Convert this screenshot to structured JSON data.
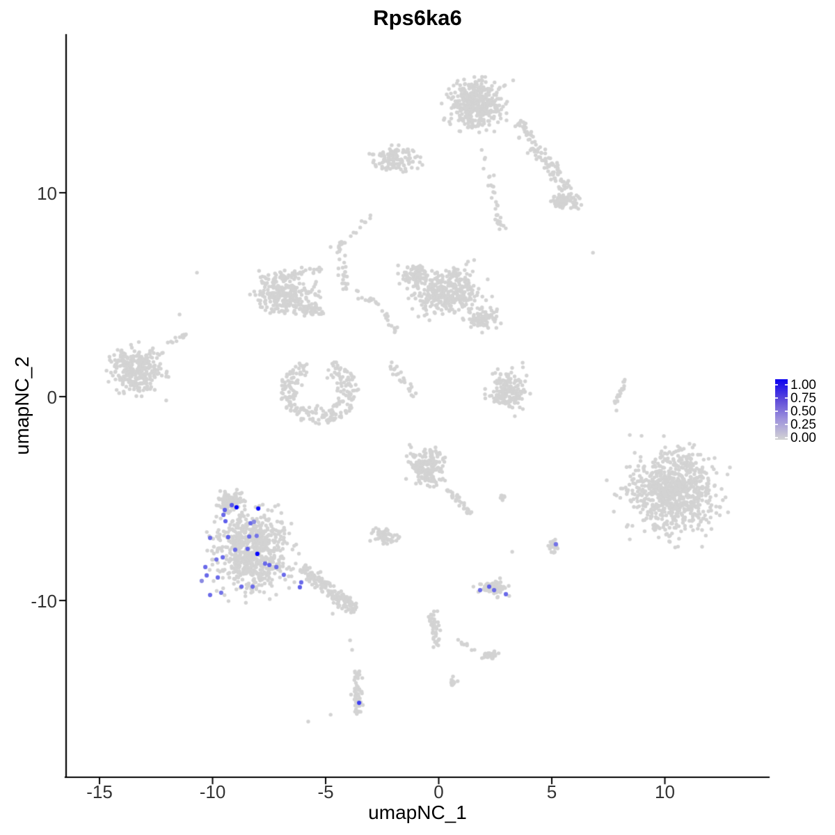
{
  "page": {
    "background": "#FFFFFF"
  },
  "chart_data": {
    "type": "scatter",
    "title": "Rps6ka6",
    "xlabel": "umapNC_1",
    "ylabel": "umapNC_2",
    "xlim": [
      -16.5,
      14.6
    ],
    "ylim": [
      -18.7,
      17.8
    ],
    "grid": false,
    "legend_position": "right",
    "point_color": "#D3D3D3",
    "axis_color": "#000000",
    "x_ticks": [
      {
        "label": "-15",
        "value": -15
      },
      {
        "label": "-10",
        "value": -10
      },
      {
        "label": "-5",
        "value": -5
      },
      {
        "label": "0",
        "value": 0
      },
      {
        "label": "5",
        "value": 5
      },
      {
        "label": "10",
        "value": 10
      }
    ],
    "y_ticks": [
      {
        "label": "10",
        "value": 10
      },
      {
        "label": "0",
        "value": 0
      },
      {
        "label": "-10",
        "value": -10
      }
    ],
    "legend": {
      "low_color": "#D3D3D3",
      "high_color": "#0000FF",
      "ticks": [
        {
          "label": "1.00",
          "value": 1.0
        },
        {
          "label": "0.75",
          "value": 0.75
        },
        {
          "label": "0.50",
          "value": 0.5
        },
        {
          "label": "0.25",
          "value": 0.25
        },
        {
          "label": "0.00",
          "value": 0.0
        }
      ]
    },
    "clusters": [
      {
        "name": "top-main",
        "type": "gauss",
        "cx": 1.68,
        "cy": 14.33,
        "sx": 1.69,
        "sy": 1.64,
        "rot": 0,
        "n": 430
      },
      {
        "name": "top-arm",
        "type": "strand",
        "x1": 3.49,
        "y1": 13.52,
        "x2": 6.2,
        "y2": 9.21,
        "w": 0.5,
        "n": 135
      },
      {
        "name": "top-arm-endblob",
        "type": "gauss",
        "cx": 5.37,
        "cy": 9.56,
        "sx": 0.55,
        "sy": 0.5,
        "rot": 0,
        "n": 55
      },
      {
        "name": "top-droop",
        "type": "strand",
        "x1": 1.98,
        "y1": 12.12,
        "x2": 2.85,
        "y2": 7.92,
        "w": 0.35,
        "n": 30
      },
      {
        "name": "top-small",
        "type": "gauss",
        "cx": -1.86,
        "cy": 11.6,
        "sx": 1.54,
        "sy": 0.89,
        "rot": -5,
        "n": 115
      },
      {
        "name": "upper-connector",
        "type": "strand",
        "x1": -3.0,
        "y1": 8.91,
        "x2": -4.29,
        "y2": 7.51,
        "w": 0.2,
        "n": 13
      },
      {
        "name": "mid-strand",
        "type": "strand",
        "x1": -4.42,
        "y1": 7.61,
        "x2": -4.08,
        "y2": 5.29,
        "w": 0.22,
        "n": 30
      },
      {
        "name": "mid-trail",
        "type": "strand",
        "x1": -3.86,
        "y1": 5.12,
        "x2": -2.51,
        "y2": 4.44,
        "w": 0.25,
        "n": 14
      },
      {
        "name": "mid-left",
        "type": "gauss",
        "cx": -6.78,
        "cy": 4.95,
        "sx": 1.7,
        "sy": 1.37,
        "rot": -12,
        "n": 240
      },
      {
        "name": "mid-left-bump",
        "type": "gauss",
        "cx": -5.55,
        "cy": 4.27,
        "sx": 0.7,
        "sy": 0.5,
        "rot": 0,
        "n": 50
      },
      {
        "name": "mid-left-top-arm",
        "type": "strand",
        "x1": -7.89,
        "y1": 5.8,
        "x2": -5.22,
        "y2": 6.21,
        "w": 0.3,
        "n": 45
      },
      {
        "name": "mid-right",
        "type": "gauss",
        "cx": 0.45,
        "cy": 5.12,
        "sx": 2.3,
        "sy": 1.6,
        "rot": 8,
        "n": 330
      },
      {
        "name": "mid-right-left-lobe",
        "type": "gauss",
        "cx": -1.09,
        "cy": 5.97,
        "sx": 0.85,
        "sy": 0.85,
        "rot": 0,
        "n": 80
      },
      {
        "name": "mid-right-right-lobe",
        "type": "gauss",
        "cx": 1.92,
        "cy": 3.82,
        "sx": 1.05,
        "sy": 0.75,
        "rot": 15,
        "n": 85
      },
      {
        "name": "mid-right-west-scatter",
        "type": "strand",
        "x1": -2.42,
        "y1": 4.27,
        "x2": -1.92,
        "y2": 3.14,
        "w": 0.35,
        "n": 13
      },
      {
        "name": "mid-right-down-trail",
        "type": "strand",
        "x1": -2.2,
        "y1": 1.6,
        "x2": -1.03,
        "y2": 0.07,
        "w": 0.2,
        "n": 24
      },
      {
        "name": "far-left",
        "type": "gauss",
        "cx": -13.4,
        "cy": 1.3,
        "sx": 1.62,
        "sy": 1.6,
        "rot": 0,
        "n": 300
      },
      {
        "name": "far-left-tail",
        "type": "strand",
        "x1": -11.89,
        "y1": 2.59,
        "x2": -11.15,
        "y2": 3.07,
        "w": 0.18,
        "n": 12
      },
      {
        "name": "bowl",
        "type": "ring",
        "cx": -5.31,
        "cy": 0.27,
        "rx": 1.72,
        "ry": 1.6,
        "inner": 0.45,
        "a0": 110,
        "a1": 430,
        "n": 235
      },
      {
        "name": "center-small",
        "type": "gauss",
        "cx": 3.06,
        "cy": 0.27,
        "sx": 1.1,
        "sy": 1.5,
        "rot": 0,
        "n": 165
      },
      {
        "name": "right-strip",
        "type": "strand",
        "x1": 8.29,
        "y1": 0.92,
        "x2": 7.83,
        "y2": -0.41,
        "w": 0.16,
        "n": 17
      },
      {
        "name": "right-large",
        "type": "gauss",
        "cx": 10.38,
        "cy": -4.71,
        "sx": 2.85,
        "sy": 2.95,
        "rot": -20,
        "n": 760
      },
      {
        "name": "center-mid",
        "type": "gauss",
        "cx": -0.54,
        "cy": -3.48,
        "sx": 1.15,
        "sy": 1.25,
        "rot": 0,
        "n": 190
      },
      {
        "name": "center-mid-tail",
        "type": "strand",
        "x1": 0.38,
        "y1": -4.47,
        "x2": 1.4,
        "y2": -5.73,
        "w": 0.25,
        "n": 30
      },
      {
        "name": "center-mid-pair",
        "type": "gauss",
        "cx": 2.82,
        "cy": -4.98,
        "sx": 0.28,
        "sy": 0.2,
        "rot": 0,
        "n": 10
      },
      {
        "name": "bottom-left-main",
        "type": "gauss",
        "cx": -8.26,
        "cy": -7.58,
        "sx": 2.32,
        "sy": 2.7,
        "rot": 0,
        "n": 680
      },
      {
        "name": "bottom-left-top-arm",
        "type": "gauss",
        "cx": -9.18,
        "cy": -5.12,
        "sx": 0.8,
        "sy": 0.72,
        "rot": 0,
        "n": 95
      },
      {
        "name": "bottom-left-tail",
        "type": "strand",
        "x1": -6.02,
        "y1": -8.4,
        "x2": -3.71,
        "y2": -10.51,
        "w": 0.45,
        "n": 170
      },
      {
        "name": "below-center-small",
        "type": "gauss",
        "cx": -2.42,
        "cy": -6.83,
        "sx": 0.83,
        "sy": 0.58,
        "rot": 0,
        "n": 55
      },
      {
        "name": "bottom-center-small",
        "type": "gauss",
        "cx": 2.42,
        "cy": -9.39,
        "sx": 0.95,
        "sy": 0.6,
        "rot": 0,
        "n": 68
      },
      {
        "name": "bottom-right-tiny",
        "type": "gauss",
        "cx": 5.0,
        "cy": -7.34,
        "sx": 0.37,
        "sy": 0.46,
        "rot": 0,
        "n": 22
      },
      {
        "name": "bottom-strand",
        "type": "strand",
        "x1": -3.58,
        "y1": -13.41,
        "x2": -3.58,
        "y2": -15.56,
        "w": 0.28,
        "n": 55
      },
      {
        "name": "bottom-mid-strip",
        "type": "strand",
        "x1": -0.26,
        "y1": -10.58,
        "x2": -0.08,
        "y2": -12.22,
        "w": 0.24,
        "n": 42
      },
      {
        "name": "bottom-connector",
        "type": "strand",
        "x1": 0.75,
        "y1": -11.95,
        "x2": 1.77,
        "y2": -12.42,
        "w": 0.12,
        "n": 8
      },
      {
        "name": "bottom-blob",
        "type": "gauss",
        "cx": 2.29,
        "cy": -12.66,
        "sx": 0.5,
        "sy": 0.33,
        "rot": 0,
        "n": 30
      },
      {
        "name": "bottom-tiny-ellipse",
        "type": "gauss",
        "cx": 0.63,
        "cy": -13.96,
        "sx": 0.24,
        "sy": 0.36,
        "rot": 0,
        "n": 12
      }
    ],
    "singletons": [
      [
        -10.69,
        6.08
      ],
      [
        6.82,
        7.06
      ],
      [
        7.86,
        -0.68
      ],
      [
        -4.69,
        -10.65
      ],
      [
        -3.92,
        -11.95
      ],
      [
        -3.83,
        -12.42
      ],
      [
        -4.78,
        -15.6
      ],
      [
        -5.77,
        -15.94
      ],
      [
        -4.78,
        7.34
      ],
      [
        3.25,
        -7.61
      ],
      [
        8.45,
        -1.88
      ],
      [
        7.43,
        -4.1
      ],
      [
        -11.46,
        4.03
      ]
    ],
    "expressing_cells": [
      [
        -8.94,
        -5.43,
        1.0
      ],
      [
        -7.98,
        -5.49,
        0.95
      ],
      [
        -8.02,
        -7.71,
        1.0
      ],
      [
        -9.15,
        -5.32,
        0.6
      ],
      [
        -9.46,
        -5.56,
        0.55
      ],
      [
        -9.52,
        -5.8,
        0.5
      ],
      [
        -9.43,
        -6.11,
        0.55
      ],
      [
        -8.32,
        -6.21,
        0.5
      ],
      [
        -8.17,
        -6.14,
        0.35
      ],
      [
        -10.11,
        -6.93,
        0.5
      ],
      [
        -9.31,
        -6.89,
        0.55
      ],
      [
        -8.38,
        -6.86,
        0.5
      ],
      [
        -8.05,
        -6.83,
        0.45
      ],
      [
        -9.0,
        -7.51,
        0.5
      ],
      [
        -8.45,
        -7.47,
        0.55
      ],
      [
        -7.68,
        -8.19,
        0.5
      ],
      [
        -7.49,
        -8.26,
        0.55
      ],
      [
        -7.18,
        -8.36,
        0.5
      ],
      [
        -6.85,
        -8.74,
        0.5
      ],
      [
        -9.55,
        -7.88,
        0.5
      ],
      [
        -9.83,
        -7.99,
        0.45
      ],
      [
        -10.32,
        -8.36,
        0.5
      ],
      [
        -10.26,
        -8.77,
        0.5
      ],
      [
        -9.77,
        -8.87,
        0.5
      ],
      [
        -10.48,
        -9.04,
        0.35
      ],
      [
        -10.11,
        -9.73,
        0.5
      ],
      [
        -9.62,
        -9.62,
        0.45
      ],
      [
        -8.72,
        -9.32,
        0.5
      ],
      [
        -8.23,
        -9.32,
        0.5
      ],
      [
        -6.08,
        -9.11,
        0.5
      ],
      [
        -6.14,
        -9.35,
        0.55
      ],
      [
        1.83,
        -9.49,
        0.5
      ],
      [
        2.23,
        -9.32,
        0.55
      ],
      [
        2.45,
        -9.49,
        0.5
      ],
      [
        2.97,
        -9.69,
        0.5
      ],
      [
        5.18,
        -7.24,
        0.45
      ],
      [
        -3.52,
        -15.02,
        0.7
      ]
    ]
  }
}
